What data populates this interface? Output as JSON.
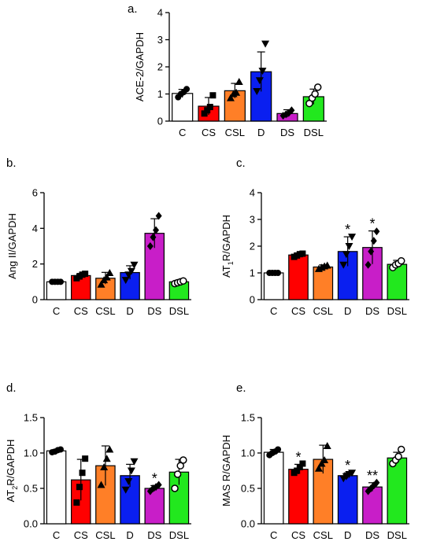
{
  "chart_data": [
    {
      "panel_label": "a.",
      "type": "bar",
      "ylabel": "ACE-2/GAPDH",
      "categories": [
        "C",
        "CS",
        "CSL",
        "D",
        "DS",
        "DSL"
      ],
      "values": [
        1.02,
        0.55,
        1.12,
        1.82,
        0.28,
        0.9
      ],
      "errors": [
        0.15,
        0.32,
        0.27,
        0.73,
        0.14,
        0.28
      ],
      "points": [
        [
          0.88,
          1.0,
          1.07,
          1.18
        ],
        [
          0.28,
          0.4,
          0.52,
          0.95
        ],
        [
          0.85,
          1.0,
          1.05,
          1.45
        ],
        [
          1.1,
          1.5,
          1.85,
          2.85
        ],
        [
          0.2,
          0.25,
          0.3,
          0.4
        ],
        [
          0.65,
          0.85,
          1.0,
          1.25
        ]
      ],
      "ylim": [
        0,
        4
      ],
      "yticks": [
        0,
        1,
        2,
        3,
        4
      ],
      "significance": [
        "",
        "",
        "",
        "",
        "",
        ""
      ],
      "grid": false
    },
    {
      "panel_label": "b.",
      "type": "bar",
      "ylabel": "Ang II/GAPDH",
      "categories": [
        "C",
        "CS",
        "CSL",
        "D",
        "DS",
        "DSL"
      ],
      "values": [
        1.0,
        1.35,
        1.2,
        1.52,
        3.72,
        1.0
      ],
      "errors": [
        0.05,
        0.12,
        0.33,
        0.38,
        0.82,
        0.1
      ],
      "points": [
        [
          1.0,
          1.0,
          1.0,
          1.0
        ],
        [
          1.2,
          1.3,
          1.4,
          1.45
        ],
        [
          0.85,
          1.1,
          1.25,
          1.5
        ],
        [
          1.1,
          1.4,
          1.6,
          1.95
        ],
        [
          3.0,
          3.5,
          3.9,
          4.7
        ],
        [
          0.9,
          0.95,
          1.0,
          1.05
        ]
      ],
      "ylim": [
        0,
        6
      ],
      "yticks": [
        0,
        2,
        4,
        6
      ],
      "significance": [
        "",
        "",
        "",
        "",
        "",
        ""
      ],
      "grid": false
    },
    {
      "panel_label": "c.",
      "type": "bar",
      "ylabel": "AT1R/GAPDH",
      "ylabel_main": "AT",
      "ylabel_sub": "1",
      "ylabel_rest": "R/GAPDH",
      "categories": [
        "C",
        "CS",
        "CSL",
        "D",
        "DS",
        "DSL"
      ],
      "values": [
        1.0,
        1.67,
        1.22,
        1.8,
        1.95,
        1.32
      ],
      "errors": [
        0.03,
        0.06,
        0.08,
        0.55,
        0.62,
        0.15
      ],
      "points": [
        [
          1.0,
          1.0,
          1.0,
          1.0
        ],
        [
          1.6,
          1.65,
          1.7,
          1.72
        ],
        [
          1.15,
          1.2,
          1.25,
          1.28
        ],
        [
          1.3,
          1.7,
          2.0,
          2.35
        ],
        [
          1.3,
          1.8,
          2.2,
          2.55
        ],
        [
          1.2,
          1.3,
          1.35,
          1.45
        ]
      ],
      "ylim": [
        0,
        4
      ],
      "yticks": [
        0,
        1,
        2,
        3,
        4
      ],
      "significance": [
        "",
        "",
        "",
        "*",
        "*",
        ""
      ],
      "grid": false
    },
    {
      "panel_label": "d.",
      "type": "bar",
      "ylabel": "AT2R/GAPDH",
      "ylabel_main": "AT",
      "ylabel_sub": "2",
      "ylabel_rest": "R/GAPDH",
      "categories": [
        "C",
        "CS",
        "CSL",
        "D",
        "DS",
        "DSL"
      ],
      "values": [
        1.03,
        0.62,
        0.82,
        0.68,
        0.5,
        0.73
      ],
      "errors": [
        0.02,
        0.29,
        0.28,
        0.16,
        0.04,
        0.18
      ],
      "points": [
        [
          1.01,
          1.02,
          1.04,
          1.05
        ],
        [
          0.3,
          0.52,
          0.72,
          0.92
        ],
        [
          0.55,
          0.8,
          0.92,
          1.05
        ],
        [
          0.48,
          0.6,
          0.75,
          0.88
        ],
        [
          0.46,
          0.5,
          0.52,
          0.55
        ],
        [
          0.5,
          0.7,
          0.82,
          0.9
        ]
      ],
      "ylim": [
        0,
        1.5
      ],
      "yticks": [
        0.0,
        0.5,
        1.0,
        1.5
      ],
      "significance": [
        "",
        "",
        "",
        "",
        "*",
        ""
      ],
      "grid": false
    },
    {
      "panel_label": "e.",
      "type": "bar",
      "ylabel": "MAS R/GAPDH",
      "categories": [
        "C",
        "CS",
        "CSL",
        "D",
        "DS",
        "DSL"
      ],
      "values": [
        1.01,
        0.77,
        0.91,
        0.68,
        0.52,
        0.93
      ],
      "errors": [
        0.04,
        0.07,
        0.2,
        0.04,
        0.06,
        0.08
      ],
      "points": [
        [
          0.97,
          1.0,
          1.02,
          1.05
        ],
        [
          0.72,
          0.75,
          0.8,
          0.85
        ],
        [
          0.78,
          0.85,
          0.9,
          1.1
        ],
        [
          0.64,
          0.67,
          0.7,
          0.72
        ],
        [
          0.46,
          0.5,
          0.54,
          0.58
        ],
        [
          0.85,
          0.9,
          0.95,
          1.05
        ]
      ],
      "ylim": [
        0,
        1.5
      ],
      "yticks": [
        0.0,
        0.5,
        1.0,
        1.5
      ],
      "significance": [
        "",
        "*",
        "",
        "*",
        "**",
        ""
      ],
      "grid": false
    }
  ],
  "colors": {
    "C": "#ffffff",
    "CS": "#ff0000",
    "CSL": "#ff7f27",
    "D": "#0a1ff0",
    "DS": "#c81ec8",
    "DSL": "#22e81e"
  },
  "markers": [
    "circle",
    "square",
    "triangle",
    "triangle-down",
    "diamond",
    "circle-open"
  ]
}
